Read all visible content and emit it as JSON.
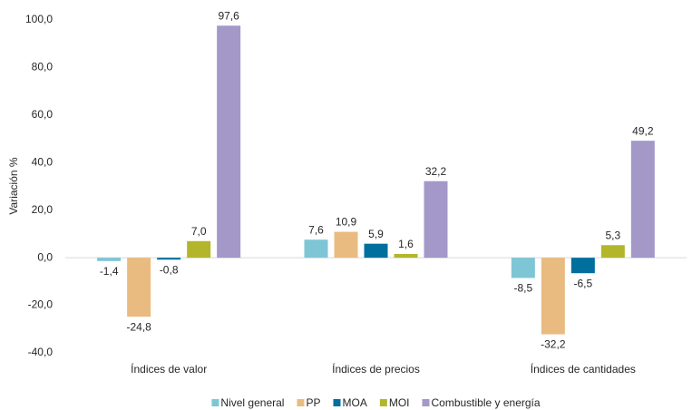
{
  "chart_data": {
    "type": "bar",
    "y_label": "Variación %",
    "categories": [
      "Índices de valor",
      "Índices de precios",
      "Índices de cantidades"
    ],
    "series": [
      {
        "name": "Nivel general",
        "color": "#7ec6d6",
        "values": [
          -1.4,
          7.6,
          -8.5
        ],
        "value_labels": [
          "-1,4",
          "7,6",
          "-8,5"
        ]
      },
      {
        "name": "PP",
        "color": "#e9bb80",
        "values": [
          -24.8,
          10.9,
          -32.2
        ],
        "value_labels": [
          "-24,8",
          "10,9",
          "-32,2"
        ]
      },
      {
        "name": "MOA",
        "color": "#006f9e",
        "values": [
          -0.8,
          5.9,
          -6.5
        ],
        "value_labels": [
          "-0,8",
          "5,9",
          "-6,5"
        ]
      },
      {
        "name": "MOI",
        "color": "#b3b62a",
        "values": [
          7.0,
          1.6,
          5.3
        ],
        "value_labels": [
          "7,0",
          "1,6",
          "5,3"
        ]
      },
      {
        "name": "Combustible y energía",
        "color": "#a398c8",
        "values": [
          97.6,
          32.2,
          49.2
        ],
        "value_labels": [
          "97,6",
          "32,2",
          "49,2"
        ]
      }
    ],
    "ylim": [
      -40,
      100
    ],
    "yticks": [
      {
        "value": -40,
        "label": "-40,0"
      },
      {
        "value": -20,
        "label": "-20,0"
      },
      {
        "value": 0,
        "label": "0,0"
      },
      {
        "value": 20,
        "label": "20,0"
      },
      {
        "value": 40,
        "label": "40,0"
      },
      {
        "value": 60,
        "label": "60,0"
      },
      {
        "value": 80,
        "label": "80,0"
      },
      {
        "value": 100,
        "label": "100,0"
      }
    ],
    "grid": false,
    "legend": "bottom"
  }
}
